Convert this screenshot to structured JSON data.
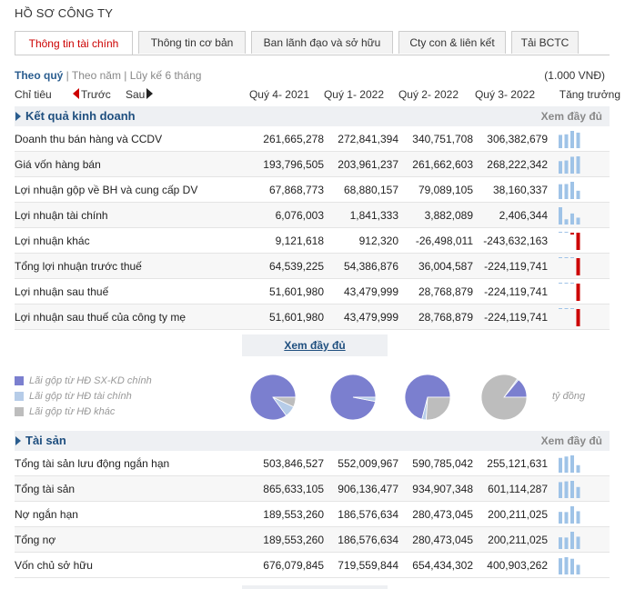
{
  "page_title": "HỒ SƠ CÔNG TY",
  "tabs": [
    {
      "label": "Thông tin tài chính",
      "active": true
    },
    {
      "label": "Thông tin cơ bản",
      "active": false
    },
    {
      "label": "Ban lãnh đạo và sở hữu",
      "active": false
    },
    {
      "label": "Cty con & liên kết",
      "active": false
    },
    {
      "label": "Tải BCTC",
      "active": false
    }
  ],
  "period": {
    "quarter": "Theo quý",
    "sep1": " | ",
    "year": "Theo năm",
    "sep2": " | ",
    "cumulative": "Lũy kế 6 tháng"
  },
  "unit": "(1.000 VNĐ)",
  "header": {
    "label": "Chỉ tiêu",
    "prev": "Trước",
    "next": "Sau",
    "quarters": [
      "Quý 4- 2021",
      "Quý 1- 2022",
      "Quý 2- 2022",
      "Quý 3- 2022"
    ],
    "growth": "Tăng trưởng"
  },
  "business_section": {
    "title": "Kết quả kinh doanh",
    "more": "Xem đầy đủ",
    "rows": [
      {
        "name": "Doanh thu bán hàng và CCDV",
        "values": [
          "261,665,278",
          "272,841,394",
          "340,751,708",
          "306,382,679"
        ],
        "nums": [
          261665278,
          272841394,
          340751708,
          306382679
        ]
      },
      {
        "name": "Giá vốn hàng bán",
        "values": [
          "193,796,505",
          "203,961,237",
          "261,662,603",
          "268,222,342"
        ],
        "nums": [
          193796505,
          203961237,
          261662603,
          268222342
        ]
      },
      {
        "name": "Lợi nhuận gộp về BH và cung cấp DV",
        "values": [
          "67,868,773",
          "68,880,157",
          "79,089,105",
          "38,160,337"
        ],
        "nums": [
          67868773,
          68880157,
          79089105,
          38160337
        ]
      },
      {
        "name": "Lợi nhuận tài chính",
        "values": [
          "6,076,003",
          "1,841,333",
          "3,882,089",
          "2,406,344"
        ],
        "nums": [
          6076003,
          1841333,
          3882089,
          2406344
        ]
      },
      {
        "name": "Lợi nhuận khác",
        "values": [
          "9,121,618",
          "912,320",
          "-26,498,011",
          "-243,632,163"
        ],
        "nums": [
          9121618,
          912320,
          -26498011,
          -243632163
        ]
      },
      {
        "name": "Tổng lợi nhuận trước thuế",
        "values": [
          "64,539,225",
          "54,386,876",
          "36,004,587",
          "-224,119,741"
        ],
        "nums": [
          64539225,
          54386876,
          36004587,
          -224119741
        ]
      },
      {
        "name": "Lợi nhuận sau thuế",
        "values": [
          "51,601,980",
          "43,479,999",
          "28,768,879",
          "-224,119,741"
        ],
        "nums": [
          51601980,
          43479999,
          28768879,
          -224119741
        ]
      },
      {
        "name": "Lợi nhuận sau thuế của công ty mẹ",
        "values": [
          "51,601,980",
          "43,479,999",
          "28,768,879",
          "-224,119,741"
        ],
        "nums": [
          51601980,
          43479999,
          28768879,
          -224119741
        ]
      }
    ]
  },
  "see_full": "Xem đầy đủ",
  "legend": [
    {
      "label": "Lãi gộp từ HĐ SX-KD chính",
      "color": "#7b7fcf"
    },
    {
      "label": "Lãi gộp từ HĐ tài chính",
      "color": "#b6cce8"
    },
    {
      "label": "Lãi gộp từ HĐ khác",
      "color": "#bdbdbd"
    }
  ],
  "pies": [
    {
      "main": 0.85,
      "fin": 0.08,
      "other": 0.07
    },
    {
      "main": 0.97,
      "fin": 0.03,
      "other": 0.0
    },
    {
      "main": 0.71,
      "fin": 0.03,
      "other": 0.26
    },
    {
      "main": 0.14,
      "fin": 0.01,
      "other": 0.85
    }
  ],
  "pie_unit": "tỷ đồng",
  "asset_section": {
    "title": "Tài sản",
    "more": "Xem đầy đủ",
    "rows": [
      {
        "name": "Tổng tài sản lưu động ngắn hạn",
        "values": [
          "503,846,527",
          "552,009,967",
          "590,785,042",
          "255,121,631"
        ],
        "nums": [
          503846527,
          552009967,
          590785042,
          255121631
        ]
      },
      {
        "name": "Tổng tài sản",
        "values": [
          "865,633,105",
          "906,136,477",
          "934,907,348",
          "601,114,287"
        ],
        "nums": [
          865633105,
          906136477,
          934907348,
          601114287
        ]
      },
      {
        "name": "Nợ ngắn hạn",
        "values": [
          "189,553,260",
          "186,576,634",
          "280,473,045",
          "200,211,025"
        ],
        "nums": [
          189553260,
          186576634,
          280473045,
          200211025
        ]
      },
      {
        "name": "Tổng nợ",
        "values": [
          "189,553,260",
          "186,576,634",
          "280,473,045",
          "200,211,025"
        ],
        "nums": [
          189553260,
          186576634,
          280473045,
          200211025
        ]
      },
      {
        "name": "Vốn chủ sở hữu",
        "values": [
          "676,079,845",
          "719,559,844",
          "654,434,302",
          "400,903,262"
        ],
        "nums": [
          676079845,
          719559844,
          654434302,
          400903262
        ]
      }
    ]
  },
  "colors": {
    "bar_positive": "#9fc3e7",
    "bar_negative": "#cc0000",
    "tab_active": "#cc0000",
    "section_title": "#1f4f7f"
  }
}
